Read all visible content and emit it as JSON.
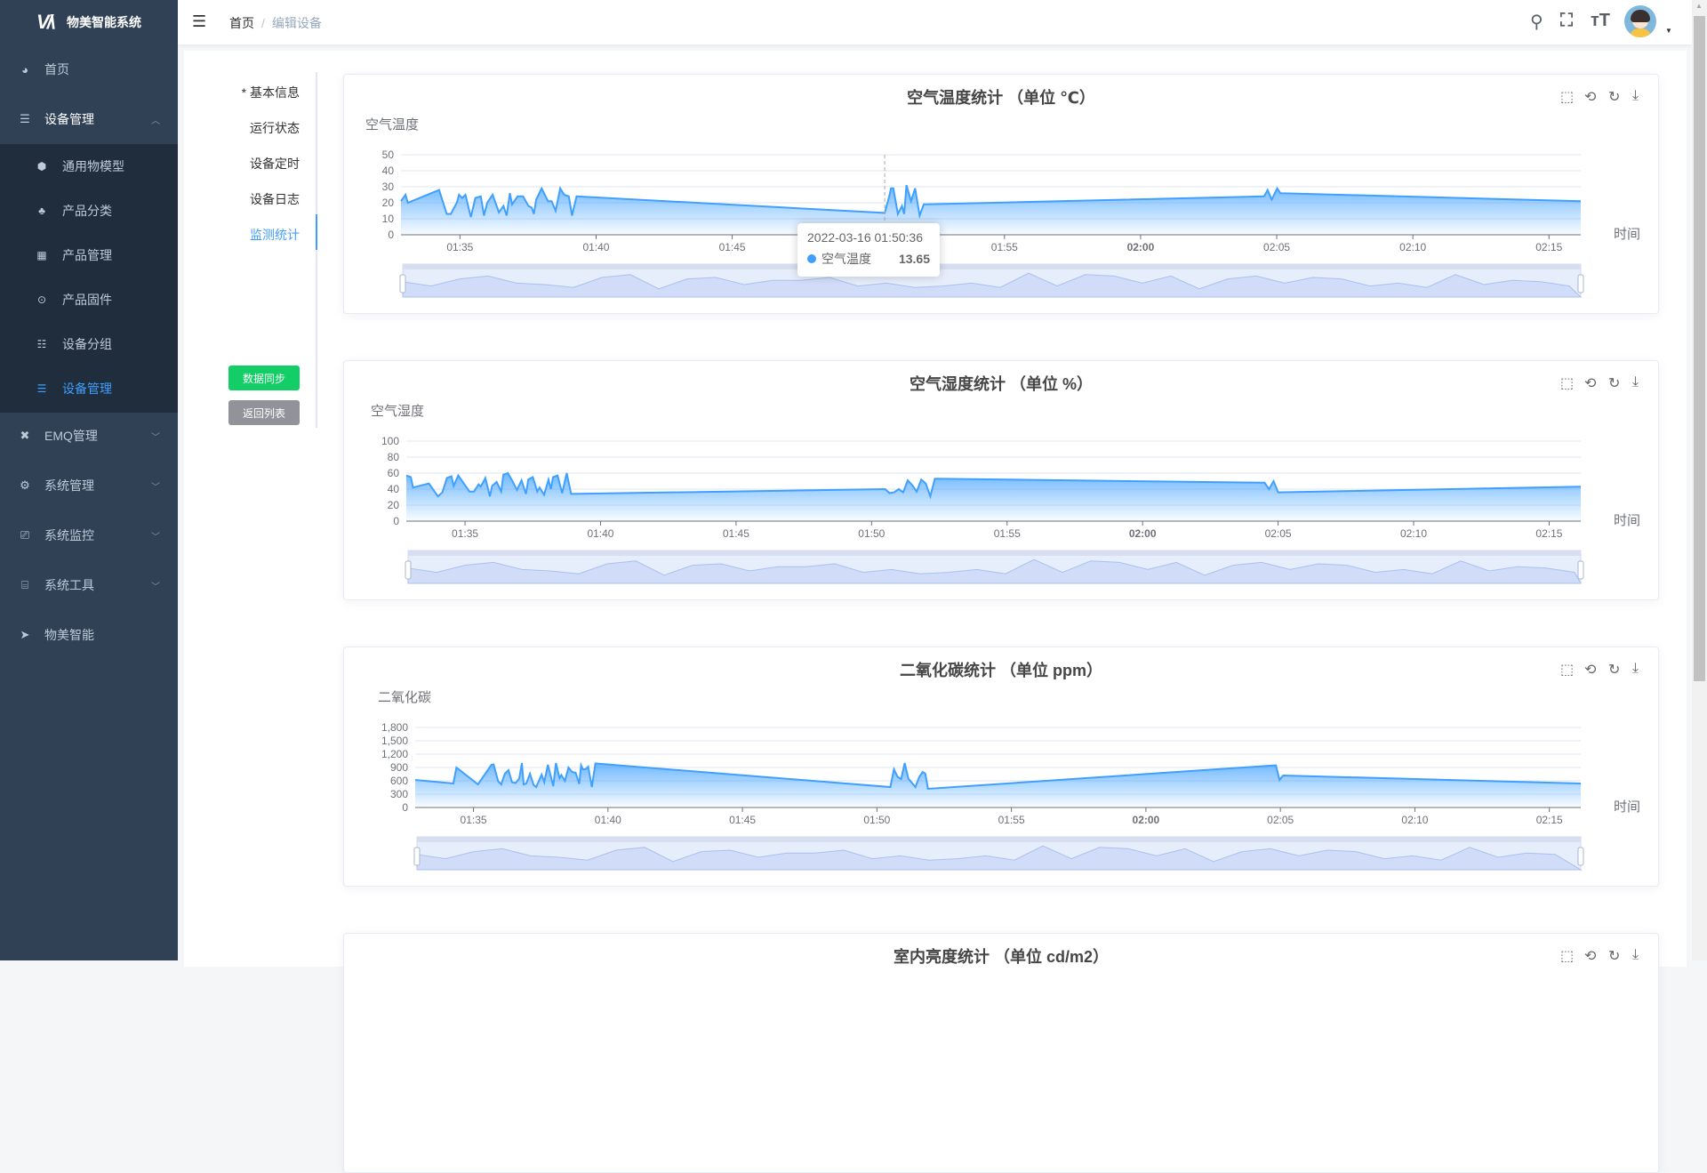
{
  "app": {
    "title": "物美智能系统",
    "logo_text": "VA"
  },
  "sidebar": {
    "items": [
      {
        "label": "首页",
        "icon": "dashboard-icon"
      },
      {
        "label": "设备管理",
        "icon": "device-icon",
        "expanded": true
      },
      {
        "label": "EMQ管理",
        "icon": "emq-icon"
      },
      {
        "label": "系统管理",
        "icon": "gear-icon"
      },
      {
        "label": "系统监控",
        "icon": "monitor-icon"
      },
      {
        "label": "系统工具",
        "icon": "toolbox-icon"
      },
      {
        "label": "物美智能",
        "icon": "send-icon"
      }
    ],
    "subitems": [
      {
        "label": "通用物模型",
        "icon": "cube-icon"
      },
      {
        "label": "产品分类",
        "icon": "tree-icon"
      },
      {
        "label": "产品管理",
        "icon": "grid-icon"
      },
      {
        "label": "产品固件",
        "icon": "chip-icon"
      },
      {
        "label": "设备分组",
        "icon": "group-icon"
      },
      {
        "label": "设备管理",
        "icon": "list-icon",
        "active": true
      }
    ]
  },
  "header": {
    "breadcrumb": [
      "首页",
      "编辑设备"
    ],
    "separator": "/"
  },
  "tabs": [
    "* 基本信息",
    "运行状态",
    "设备定时",
    "设备日志",
    "监测统计"
  ],
  "active_tab": "监测统计",
  "buttons": {
    "sync": "数据同步",
    "back": "返回列表"
  },
  "colors": {
    "sidebar": "#304156",
    "submenu": "#1f2d3d",
    "accent": "#409eff",
    "sync_button": "#13ce66",
    "back_button": "#909399",
    "series": "#3fa0ff"
  },
  "tooltip": {
    "time": "2022-03-16 01:50:36",
    "series": "空气温度",
    "value": "13.65"
  },
  "chart_data": [
    {
      "type": "area",
      "title": "空气温度统计 （单位 ℃）",
      "ylabel": "空气温度",
      "xlabel": "时间",
      "ylim": [
        0,
        50
      ],
      "yticks": [
        "0",
        "10",
        "20",
        "30",
        "40",
        "50"
      ],
      "xticks": [
        "01:35",
        "01:40",
        "01:45",
        "01:50",
        "01:55",
        "02:00",
        "02:05",
        "02:10",
        "02:15"
      ],
      "xlim": [
        "01:32:50",
        "02:16:10"
      ],
      "grid": true,
      "datazoom": true,
      "series": [
        {
          "name": "空气温度",
          "points": [
            [
              "01:32:50",
              21
            ],
            [
              "01:33:00",
              25
            ],
            [
              "01:33:05",
              20
            ],
            [
              "01:34:14",
              28
            ],
            [
              "01:34:31",
              13
            ],
            [
              "01:34:40",
              13
            ],
            [
              "01:34:53",
              20
            ],
            [
              "01:34:58",
              25
            ],
            [
              "01:35:05",
              23
            ],
            [
              "01:35:12",
              25
            ],
            [
              "01:35:24",
              11
            ],
            [
              "01:35:34",
              23
            ],
            [
              "01:35:46",
              24
            ],
            [
              "01:35:53",
              12
            ],
            [
              "01:36:00",
              20
            ],
            [
              "01:36:12",
              25
            ],
            [
              "01:36:26",
              14
            ],
            [
              "01:36:36",
              18
            ],
            [
              "01:36:43",
              12
            ],
            [
              "01:36:50",
              26
            ],
            [
              "01:36:55",
              19
            ],
            [
              "01:37:07",
              24
            ],
            [
              "01:37:19",
              24
            ],
            [
              "01:37:31",
              18
            ],
            [
              "01:37:38",
              17
            ],
            [
              "01:37:43",
              13
            ],
            [
              "01:37:48",
              22
            ],
            [
              "01:38:00",
              29
            ],
            [
              "01:38:14",
              21
            ],
            [
              "01:38:22",
              21
            ],
            [
              "01:38:31",
              15
            ],
            [
              "01:38:41",
              29
            ],
            [
              "01:38:50",
              25
            ],
            [
              "01:39:00",
              24
            ],
            [
              "01:39:07",
              12
            ],
            [
              "01:39:17",
              24
            ],
            [
              "01:50:36",
              13.65
            ],
            [
              "01:50:46",
              24
            ],
            [
              "01:50:50",
              29
            ],
            [
              "01:50:55",
              29
            ],
            [
              "01:51:05",
              13
            ],
            [
              "01:51:14",
              18
            ],
            [
              "01:51:19",
              13
            ],
            [
              "01:51:24",
              31
            ],
            [
              "01:51:34",
              21
            ],
            [
              "01:51:43",
              29
            ],
            [
              "01:51:53",
              12
            ],
            [
              "01:52:02",
              19
            ],
            [
              "01:52:07",
              19
            ],
            [
              "02:04:32",
              24
            ],
            [
              "02:04:40",
              28
            ],
            [
              "02:04:49",
              22
            ],
            [
              "02:05:01",
              29
            ],
            [
              "02:05:08",
              26
            ],
            [
              "02:16:10",
              21
            ]
          ]
        }
      ]
    },
    {
      "type": "area",
      "title": "空气湿度统计 （单位 %）",
      "ylabel": "空气湿度",
      "xlabel": "时间",
      "ylim": [
        0,
        100
      ],
      "yticks": [
        "0",
        "20",
        "40",
        "60",
        "80",
        "100"
      ],
      "xticks": [
        "01:35",
        "01:40",
        "01:45",
        "01:50",
        "01:55",
        "02:00",
        "02:05",
        "02:10",
        "02:15"
      ],
      "xlim": [
        "01:32:50",
        "02:16:10"
      ],
      "grid": true,
      "datazoom": true,
      "series": [
        {
          "name": "空气湿度",
          "points": [
            [
              "01:32:50",
              57
            ],
            [
              "01:33:00",
              55
            ],
            [
              "01:33:05",
              42
            ],
            [
              "01:33:40",
              47
            ],
            [
              "01:34:00",
              31
            ],
            [
              "01:34:10",
              36
            ],
            [
              "01:34:20",
              54
            ],
            [
              "01:34:30",
              56
            ],
            [
              "01:34:35",
              44
            ],
            [
              "01:34:45",
              57
            ],
            [
              "01:35:10",
              37
            ],
            [
              "01:35:20",
              37
            ],
            [
              "01:35:30",
              46
            ],
            [
              "01:35:35",
              43
            ],
            [
              "01:35:45",
              54
            ],
            [
              "01:35:55",
              31
            ],
            [
              "01:36:00",
              44
            ],
            [
              "01:36:10",
              49
            ],
            [
              "01:36:20",
              37
            ],
            [
              "01:36:25",
              58
            ],
            [
              "01:36:35",
              60
            ],
            [
              "01:36:45",
              50
            ],
            [
              "01:36:55",
              39
            ],
            [
              "01:37:05",
              51
            ],
            [
              "01:37:15",
              34
            ],
            [
              "01:37:20",
              52
            ],
            [
              "01:37:30",
              55
            ],
            [
              "01:37:40",
              37
            ],
            [
              "01:37:45",
              42
            ],
            [
              "01:37:55",
              33
            ],
            [
              "01:38:05",
              52
            ],
            [
              "01:38:10",
              40
            ],
            [
              "01:38:15",
              55
            ],
            [
              "01:38:25",
              57
            ],
            [
              "01:38:35",
              35
            ],
            [
              "01:38:45",
              60
            ],
            [
              "01:38:55",
              34
            ],
            [
              "01:50:30",
              40
            ],
            [
              "01:50:40",
              35
            ],
            [
              "01:50:50",
              36
            ],
            [
              "01:51:00",
              40
            ],
            [
              "01:51:10",
              36
            ],
            [
              "01:51:20",
              51
            ],
            [
              "01:51:30",
              45
            ],
            [
              "01:51:40",
              37
            ],
            [
              "01:51:50",
              52
            ],
            [
              "01:52:00",
              47
            ],
            [
              "01:52:10",
              31
            ],
            [
              "01:52:20",
              53
            ],
            [
              "02:04:30",
              48
            ],
            [
              "02:04:40",
              40
            ],
            [
              "02:04:50",
              50
            ],
            [
              "02:05:00",
              36
            ],
            [
              "02:16:10",
              43
            ]
          ]
        }
      ]
    },
    {
      "type": "area",
      "title": "二氧化碳统计 （单位 ppm）",
      "ylabel": "二氧化碳",
      "xlabel": "时间",
      "ylim": [
        0,
        1800
      ],
      "yticks": [
        "0",
        "300",
        "600",
        "900",
        "1,200",
        "1,500",
        "1,800"
      ],
      "xticks": [
        "01:35",
        "01:40",
        "01:45",
        "01:50",
        "01:55",
        "02:00",
        "02:05",
        "02:10",
        "02:15"
      ],
      "xlim": [
        "01:32:50",
        "02:16:10"
      ],
      "grid": true,
      "datazoom": true,
      "series": [
        {
          "name": "二氧化碳",
          "points": [
            [
              "01:32:50",
              620
            ],
            [
              "01:34:15",
              540
            ],
            [
              "01:34:22",
              900
            ],
            [
              "01:35:10",
              520
            ],
            [
              "01:35:40",
              960
            ],
            [
              "01:35:45",
              970
            ],
            [
              "01:35:55",
              590
            ],
            [
              "01:36:02",
              520
            ],
            [
              "01:36:10",
              760
            ],
            [
              "01:36:18",
              840
            ],
            [
              "01:36:26",
              570
            ],
            [
              "01:36:34",
              550
            ],
            [
              "01:36:42",
              650
            ],
            [
              "01:36:48",
              1000
            ],
            [
              "01:36:52",
              520
            ],
            [
              "01:36:58",
              540
            ],
            [
              "01:37:06",
              760
            ],
            [
              "01:37:14",
              510
            ],
            [
              "01:37:20",
              460
            ],
            [
              "01:37:32",
              740
            ],
            [
              "01:37:38",
              570
            ],
            [
              "01:37:46",
              960
            ],
            [
              "01:37:58",
              480
            ],
            [
              "01:38:04",
              1000
            ],
            [
              "01:38:12",
              660
            ],
            [
              "01:38:16",
              730
            ],
            [
              "01:38:24",
              600
            ],
            [
              "01:38:32",
              900
            ],
            [
              "01:38:40",
              800
            ],
            [
              "01:38:48",
              780
            ],
            [
              "01:38:56",
              530
            ],
            [
              "01:39:00",
              950
            ],
            [
              "01:39:04",
              860
            ],
            [
              "01:39:10",
              860
            ],
            [
              "01:39:16",
              920
            ],
            [
              "01:39:24",
              460
            ],
            [
              "01:39:32",
              990
            ],
            [
              "01:50:30",
              460
            ],
            [
              "01:50:38",
              860
            ],
            [
              "01:50:46",
              690
            ],
            [
              "01:50:54",
              640
            ],
            [
              "01:51:02",
              1000
            ],
            [
              "01:51:10",
              650
            ],
            [
              "01:51:26",
              460
            ],
            [
              "01:51:34",
              680
            ],
            [
              "01:51:42",
              800
            ],
            [
              "01:51:48",
              760
            ],
            [
              "01:51:54",
              420
            ],
            [
              "02:04:50",
              950
            ],
            [
              "02:04:58",
              620
            ],
            [
              "02:05:06",
              720
            ],
            [
              "02:16:10",
              540
            ]
          ]
        }
      ]
    },
    {
      "type": "area",
      "title": "室内亮度统计 （单位 cd/m2）"
    }
  ]
}
